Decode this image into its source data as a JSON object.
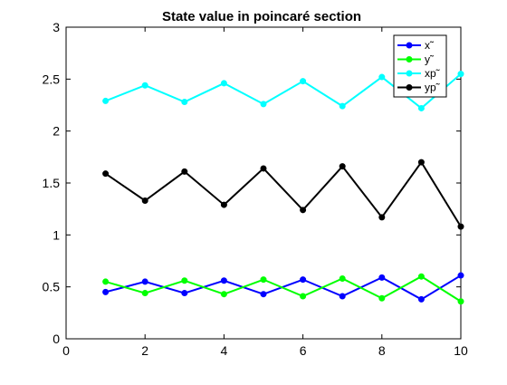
{
  "chart_data": {
    "type": "line",
    "title": "State value in poincaré section",
    "xlabel": "",
    "ylabel": "",
    "xlim": [
      0,
      10
    ],
    "ylim": [
      0,
      3
    ],
    "xticks": [
      0,
      2,
      4,
      6,
      8,
      10
    ],
    "yticks": [
      0,
      0.5,
      1,
      1.5,
      2,
      2.5,
      3
    ],
    "xtick_labels": [
      "0",
      "2",
      "4",
      "6",
      "8",
      "10"
    ],
    "ytick_labels": [
      "0",
      "0.5",
      "1",
      "1.5",
      "2",
      "2.5",
      "3"
    ],
    "grid": false,
    "legend_position": "top-right",
    "x": [
      1,
      2,
      3,
      4,
      5,
      6,
      7,
      8,
      9,
      10
    ],
    "series": [
      {
        "name": "x˜",
        "color": "#0000ff",
        "values": [
          0.45,
          0.55,
          0.44,
          0.56,
          0.43,
          0.57,
          0.41,
          0.59,
          0.38,
          0.61
        ]
      },
      {
        "name": "y˜",
        "color": "#00ff00",
        "values": [
          0.55,
          0.44,
          0.56,
          0.43,
          0.57,
          0.41,
          0.58,
          0.39,
          0.6,
          0.36
        ]
      },
      {
        "name": "xp˜",
        "color": "#00ffff",
        "values": [
          2.29,
          2.44,
          2.28,
          2.46,
          2.26,
          2.48,
          2.24,
          2.52,
          2.22,
          2.55
        ]
      },
      {
        "name": "yp˜",
        "color": "#000000",
        "values": [
          1.59,
          1.33,
          1.61,
          1.29,
          1.64,
          1.24,
          1.66,
          1.17,
          1.7,
          1.08
        ]
      }
    ]
  }
}
